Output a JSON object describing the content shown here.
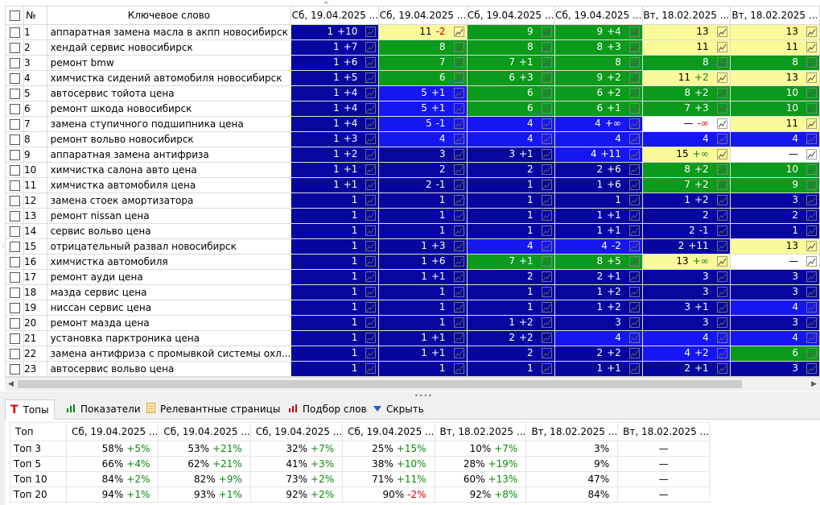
{
  "grid": {
    "headers": {
      "check": "",
      "num": "№",
      "keyword": "Ключевое слово",
      "dates": [
        "Сб, 19.04.2025 ...",
        "Сб, 19.04.2025 ...",
        "Сб, 19.04.2025 ...",
        "Сб, 19.04.2025 ...",
        "Вт, 18.02.2025 ...",
        "Вт, 18.02.2025 ..."
      ]
    },
    "rows": [
      {
        "n": "1",
        "kw": "аппаратная замена масла в акпп новосибирск",
        "cells": [
          [
            "1",
            "+10",
            "dblue"
          ],
          [
            "11",
            "-2",
            "yellow"
          ],
          [
            "9",
            "",
            "green"
          ],
          [
            "9",
            "+4",
            "green"
          ],
          [
            "13",
            "",
            "yellow"
          ],
          [
            "13",
            "",
            "yellow"
          ]
        ]
      },
      {
        "n": "2",
        "kw": "хендай сервис новосибирск",
        "cells": [
          [
            "1",
            "+7",
            "dblue"
          ],
          [
            "8",
            "",
            "green"
          ],
          [
            "8",
            "",
            "green"
          ],
          [
            "8",
            "+3",
            "green"
          ],
          [
            "11",
            "",
            "yellow"
          ],
          [
            "11",
            "",
            "yellow"
          ]
        ]
      },
      {
        "n": "3",
        "kw": "ремонт bmw",
        "cells": [
          [
            "1",
            "+6",
            "dblue"
          ],
          [
            "7",
            "",
            "green"
          ],
          [
            "7",
            "+1",
            "green"
          ],
          [
            "8",
            "",
            "green"
          ],
          [
            "8",
            "",
            "green"
          ],
          [
            "8",
            "",
            "green"
          ]
        ]
      },
      {
        "n": "4",
        "kw": "химчистка сидений автомобиля новосибирск",
        "cells": [
          [
            "1",
            "+5",
            "dblue"
          ],
          [
            "6",
            "",
            "green"
          ],
          [
            "6",
            "+3",
            "green"
          ],
          [
            "9",
            "+2",
            "green"
          ],
          [
            "11",
            "+2",
            "yellow"
          ],
          [
            "13",
            "",
            "yellow"
          ]
        ]
      },
      {
        "n": "5",
        "kw": "автосервис тойота цена",
        "cells": [
          [
            "1",
            "+4",
            "dblue"
          ],
          [
            "5",
            "+1",
            "blue"
          ],
          [
            "6",
            "",
            "green"
          ],
          [
            "6",
            "+2",
            "green"
          ],
          [
            "8",
            "+2",
            "green"
          ],
          [
            "10",
            "",
            "green"
          ]
        ]
      },
      {
        "n": "6",
        "kw": "ремонт шкода новосибирск",
        "cells": [
          [
            "1",
            "+4",
            "dblue"
          ],
          [
            "5",
            "+1",
            "blue"
          ],
          [
            "6",
            "",
            "green"
          ],
          [
            "6",
            "+1",
            "green"
          ],
          [
            "7",
            "+3",
            "green"
          ],
          [
            "10",
            "",
            "green"
          ]
        ]
      },
      {
        "n": "7",
        "kw": "замена ступичного подшипника цена",
        "cells": [
          [
            "1",
            "+4",
            "dblue"
          ],
          [
            "5",
            "-1",
            "blue"
          ],
          [
            "4",
            "",
            "blue"
          ],
          [
            "4",
            "+∞",
            "blue"
          ],
          [
            "—",
            "-∞",
            "white"
          ],
          [
            "11",
            "",
            "yellow"
          ]
        ]
      },
      {
        "n": "8",
        "kw": "ремонт вольво новосибирск",
        "cells": [
          [
            "1",
            "+3",
            "dblue"
          ],
          [
            "4",
            "",
            "blue"
          ],
          [
            "4",
            "",
            "blue"
          ],
          [
            "4",
            "",
            "blue"
          ],
          [
            "4",
            "",
            "blue"
          ],
          [
            "4",
            "",
            "blue"
          ]
        ]
      },
      {
        "n": "9",
        "kw": "аппаратная замена антифриза",
        "cells": [
          [
            "1",
            "+2",
            "dblue"
          ],
          [
            "3",
            "",
            "dblue"
          ],
          [
            "3",
            "+1",
            "dblue"
          ],
          [
            "4",
            "+11",
            "blue"
          ],
          [
            "15",
            "+∞",
            "yellow"
          ],
          [
            "—",
            "",
            "white"
          ]
        ]
      },
      {
        "n": "10",
        "kw": "химчистка салона авто цена",
        "cells": [
          [
            "1",
            "+1",
            "dblue"
          ],
          [
            "2",
            "",
            "dblue"
          ],
          [
            "2",
            "",
            "dblue"
          ],
          [
            "2",
            "+6",
            "dblue"
          ],
          [
            "8",
            "+2",
            "green"
          ],
          [
            "10",
            "",
            "green"
          ]
        ]
      },
      {
        "n": "11",
        "kw": "химчистка автомобиля цена",
        "cells": [
          [
            "1",
            "+1",
            "dblue"
          ],
          [
            "2",
            "-1",
            "dblue"
          ],
          [
            "1",
            "",
            "dblue"
          ],
          [
            "1",
            "+6",
            "dblue"
          ],
          [
            "7",
            "+2",
            "green"
          ],
          [
            "9",
            "",
            "green"
          ]
        ]
      },
      {
        "n": "12",
        "kw": "замена стоек амортизатора",
        "cells": [
          [
            "1",
            "",
            "dblue"
          ],
          [
            "1",
            "",
            "dblue"
          ],
          [
            "1",
            "",
            "dblue"
          ],
          [
            "1",
            "",
            "dblue"
          ],
          [
            "1",
            "+2",
            "dblue"
          ],
          [
            "3",
            "",
            "dblue"
          ]
        ]
      },
      {
        "n": "13",
        "kw": "ремонт nissan цена",
        "cells": [
          [
            "1",
            "",
            "dblue"
          ],
          [
            "1",
            "",
            "dblue"
          ],
          [
            "1",
            "",
            "dblue"
          ],
          [
            "1",
            "+1",
            "dblue"
          ],
          [
            "2",
            "",
            "dblue"
          ],
          [
            "2",
            "",
            "dblue"
          ]
        ]
      },
      {
        "n": "14",
        "kw": "сервис вольво цена",
        "cells": [
          [
            "1",
            "",
            "dblue"
          ],
          [
            "1",
            "",
            "dblue"
          ],
          [
            "1",
            "",
            "dblue"
          ],
          [
            "1",
            "+1",
            "dblue"
          ],
          [
            "2",
            "-1",
            "dblue"
          ],
          [
            "1",
            "",
            "dblue"
          ]
        ]
      },
      {
        "n": "15",
        "kw": "отрицательный развал новосибирск",
        "cells": [
          [
            "1",
            "",
            "dblue"
          ],
          [
            "1",
            "+3",
            "dblue"
          ],
          [
            "4",
            "",
            "blue"
          ],
          [
            "4",
            "-2",
            "blue"
          ],
          [
            "2",
            "+11",
            "dblue"
          ],
          [
            "13",
            "",
            "yellow"
          ]
        ]
      },
      {
        "n": "16",
        "kw": "химчистка автомобиля",
        "cells": [
          [
            "1",
            "",
            "dblue"
          ],
          [
            "1",
            "+6",
            "dblue"
          ],
          [
            "7",
            "+1",
            "green"
          ],
          [
            "8",
            "+5",
            "green"
          ],
          [
            "13",
            "+∞",
            "yellow"
          ],
          [
            "—",
            "",
            "white"
          ]
        ]
      },
      {
        "n": "17",
        "kw": "ремонт ауди цена",
        "cells": [
          [
            "1",
            "",
            "dblue"
          ],
          [
            "1",
            "+1",
            "dblue"
          ],
          [
            "2",
            "",
            "dblue"
          ],
          [
            "2",
            "+1",
            "dblue"
          ],
          [
            "3",
            "",
            "dblue"
          ],
          [
            "3",
            "",
            "dblue"
          ]
        ]
      },
      {
        "n": "18",
        "kw": "мазда сервис цена",
        "cells": [
          [
            "1",
            "",
            "dblue"
          ],
          [
            "1",
            "",
            "dblue"
          ],
          [
            "1",
            "",
            "dblue"
          ],
          [
            "1",
            "+2",
            "dblue"
          ],
          [
            "3",
            "",
            "dblue"
          ],
          [
            "3",
            "",
            "dblue"
          ]
        ]
      },
      {
        "n": "19",
        "kw": "ниссан сервис цена",
        "cells": [
          [
            "1",
            "",
            "dblue"
          ],
          [
            "1",
            "",
            "dblue"
          ],
          [
            "1",
            "",
            "dblue"
          ],
          [
            "1",
            "+2",
            "dblue"
          ],
          [
            "3",
            "+1",
            "dblue"
          ],
          [
            "4",
            "",
            "blue"
          ]
        ]
      },
      {
        "n": "20",
        "kw": "ремонт мазда цена",
        "cells": [
          [
            "1",
            "",
            "dblue"
          ],
          [
            "1",
            "",
            "dblue"
          ],
          [
            "1",
            "+2",
            "dblue"
          ],
          [
            "3",
            "",
            "dblue"
          ],
          [
            "3",
            "",
            "dblue"
          ],
          [
            "3",
            "",
            "dblue"
          ]
        ]
      },
      {
        "n": "21",
        "kw": "установка парктроника цена",
        "cells": [
          [
            "1",
            "",
            "dblue"
          ],
          [
            "1",
            "+1",
            "dblue"
          ],
          [
            "2",
            "+2",
            "dblue"
          ],
          [
            "4",
            "",
            "blue"
          ],
          [
            "4",
            "",
            "blue"
          ],
          [
            "4",
            "",
            "blue"
          ]
        ]
      },
      {
        "n": "22",
        "kw": "замена антифриза с промывкой системы охл...",
        "cells": [
          [
            "1",
            "",
            "dblue"
          ],
          [
            "1",
            "+1",
            "dblue"
          ],
          [
            "2",
            "",
            "dblue"
          ],
          [
            "2",
            "+2",
            "dblue"
          ],
          [
            "4",
            "+2",
            "blue"
          ],
          [
            "6",
            "",
            "green"
          ]
        ]
      },
      {
        "n": "23",
        "kw": "автосервис вольво цена",
        "cells": [
          [
            "1",
            "",
            "dblue"
          ],
          [
            "1",
            "",
            "dblue"
          ],
          [
            "1",
            "",
            "dblue"
          ],
          [
            "1",
            "+1",
            "dblue"
          ],
          [
            "2",
            "+1",
            "dblue"
          ],
          [
            "3",
            "",
            "dblue"
          ]
        ]
      }
    ]
  },
  "tabs": [
    {
      "label": "Топы",
      "icon": "T",
      "color": "#d00000",
      "active": true
    },
    {
      "label": "Показатели",
      "icon": "bars",
      "color": "#0a8a0a",
      "active": false
    },
    {
      "label": "Релевантные страницы",
      "icon": "page",
      "color": "#e0a020",
      "active": false
    },
    {
      "label": "Подбор слов",
      "icon": "bars",
      "color": "#d00000",
      "active": false
    },
    {
      "label": "Скрыть",
      "icon": "triangle",
      "color": "#2060d0",
      "active": false
    }
  ],
  "tops": {
    "headers": [
      "Топ",
      "Сб, 19.04.2025 ...",
      "Сб, 19.04.2025 ...",
      "Сб, 19.04.2025 ...",
      "Сб, 19.04.2025 ...",
      "Вт, 18.02.2025 ...",
      "Вт, 18.02.2025 ...",
      "Вт, 18.02.2025 ..."
    ],
    "rows": [
      {
        "label": "Топ 3",
        "vals": [
          [
            "58%",
            "+5%"
          ],
          [
            "53%",
            "+21%"
          ],
          [
            "32%",
            "+7%"
          ],
          [
            "25%",
            "+15%"
          ],
          [
            "10%",
            "+7%"
          ],
          [
            "3%",
            ""
          ],
          [
            "—",
            ""
          ]
        ]
      },
      {
        "label": "Топ 5",
        "vals": [
          [
            "66%",
            "+4%"
          ],
          [
            "62%",
            "+21%"
          ],
          [
            "41%",
            "+3%"
          ],
          [
            "38%",
            "+10%"
          ],
          [
            "28%",
            "+19%"
          ],
          [
            "9%",
            ""
          ],
          [
            "—",
            ""
          ]
        ]
      },
      {
        "label": "Топ 10",
        "vals": [
          [
            "84%",
            "+2%"
          ],
          [
            "82%",
            "+9%"
          ],
          [
            "73%",
            "+2%"
          ],
          [
            "71%",
            "+11%"
          ],
          [
            "60%",
            "+13%"
          ],
          [
            "47%",
            ""
          ],
          [
            "—",
            ""
          ]
        ]
      },
      {
        "label": "Топ 20",
        "vals": [
          [
            "94%",
            "+1%"
          ],
          [
            "93%",
            "+1%"
          ],
          [
            "92%",
            "+2%"
          ],
          [
            "90%",
            "-2%"
          ],
          [
            "92%",
            "+8%"
          ],
          [
            "84%",
            ""
          ],
          [
            "—",
            ""
          ]
        ]
      }
    ]
  }
}
